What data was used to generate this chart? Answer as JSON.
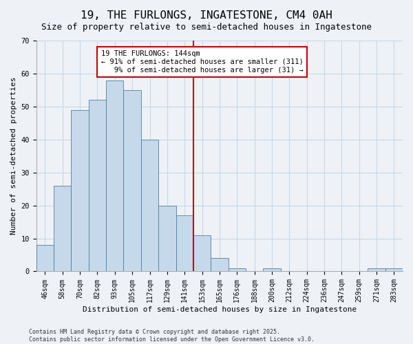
{
  "title": "19, THE FURLONGS, INGATESTONE, CM4 0AH",
  "subtitle": "Size of property relative to semi-detached houses in Ingatestone",
  "xlabel": "Distribution of semi-detached houses by size in Ingatestone",
  "ylabel": "Number of semi-detached properties",
  "bar_labels": [
    "46sqm",
    "58sqm",
    "70sqm",
    "82sqm",
    "93sqm",
    "105sqm",
    "117sqm",
    "129sqm",
    "141sqm",
    "153sqm",
    "165sqm",
    "176sqm",
    "188sqm",
    "200sqm",
    "212sqm",
    "224sqm",
    "236sqm",
    "247sqm",
    "259sqm",
    "271sqm",
    "283sqm"
  ],
  "bar_values": [
    8,
    26,
    49,
    52,
    58,
    55,
    40,
    20,
    17,
    11,
    4,
    1,
    0,
    1,
    0,
    0,
    0,
    0,
    0,
    1,
    1
  ],
  "bar_color": "#c6d9ea",
  "bar_edge_color": "#4a7fa0",
  "property_line_x": 8.5,
  "annotation_text_line1": "19 THE FURLONGS: 144sqm",
  "annotation_text_line2": "← 91% of semi-detached houses are smaller (311)",
  "annotation_text_line3": "   9% of semi-detached houses are larger (31) →",
  "annotation_box_color": "#ffffff",
  "annotation_border_color": "#cc0000",
  "property_line_color": "#cc0000",
  "ylim": [
    0,
    70
  ],
  "yticks": [
    0,
    10,
    20,
    30,
    40,
    50,
    60,
    70
  ],
  "grid_color": "#c8d8e5",
  "background_color": "#eef2f7",
  "footer_text": "Contains HM Land Registry data © Crown copyright and database right 2025.\nContains public sector information licensed under the Open Government Licence v3.0.",
  "title_fontsize": 11.5,
  "subtitle_fontsize": 9,
  "axis_label_fontsize": 8,
  "tick_fontsize": 7,
  "annotation_fontsize": 7.5,
  "footer_fontsize": 6
}
